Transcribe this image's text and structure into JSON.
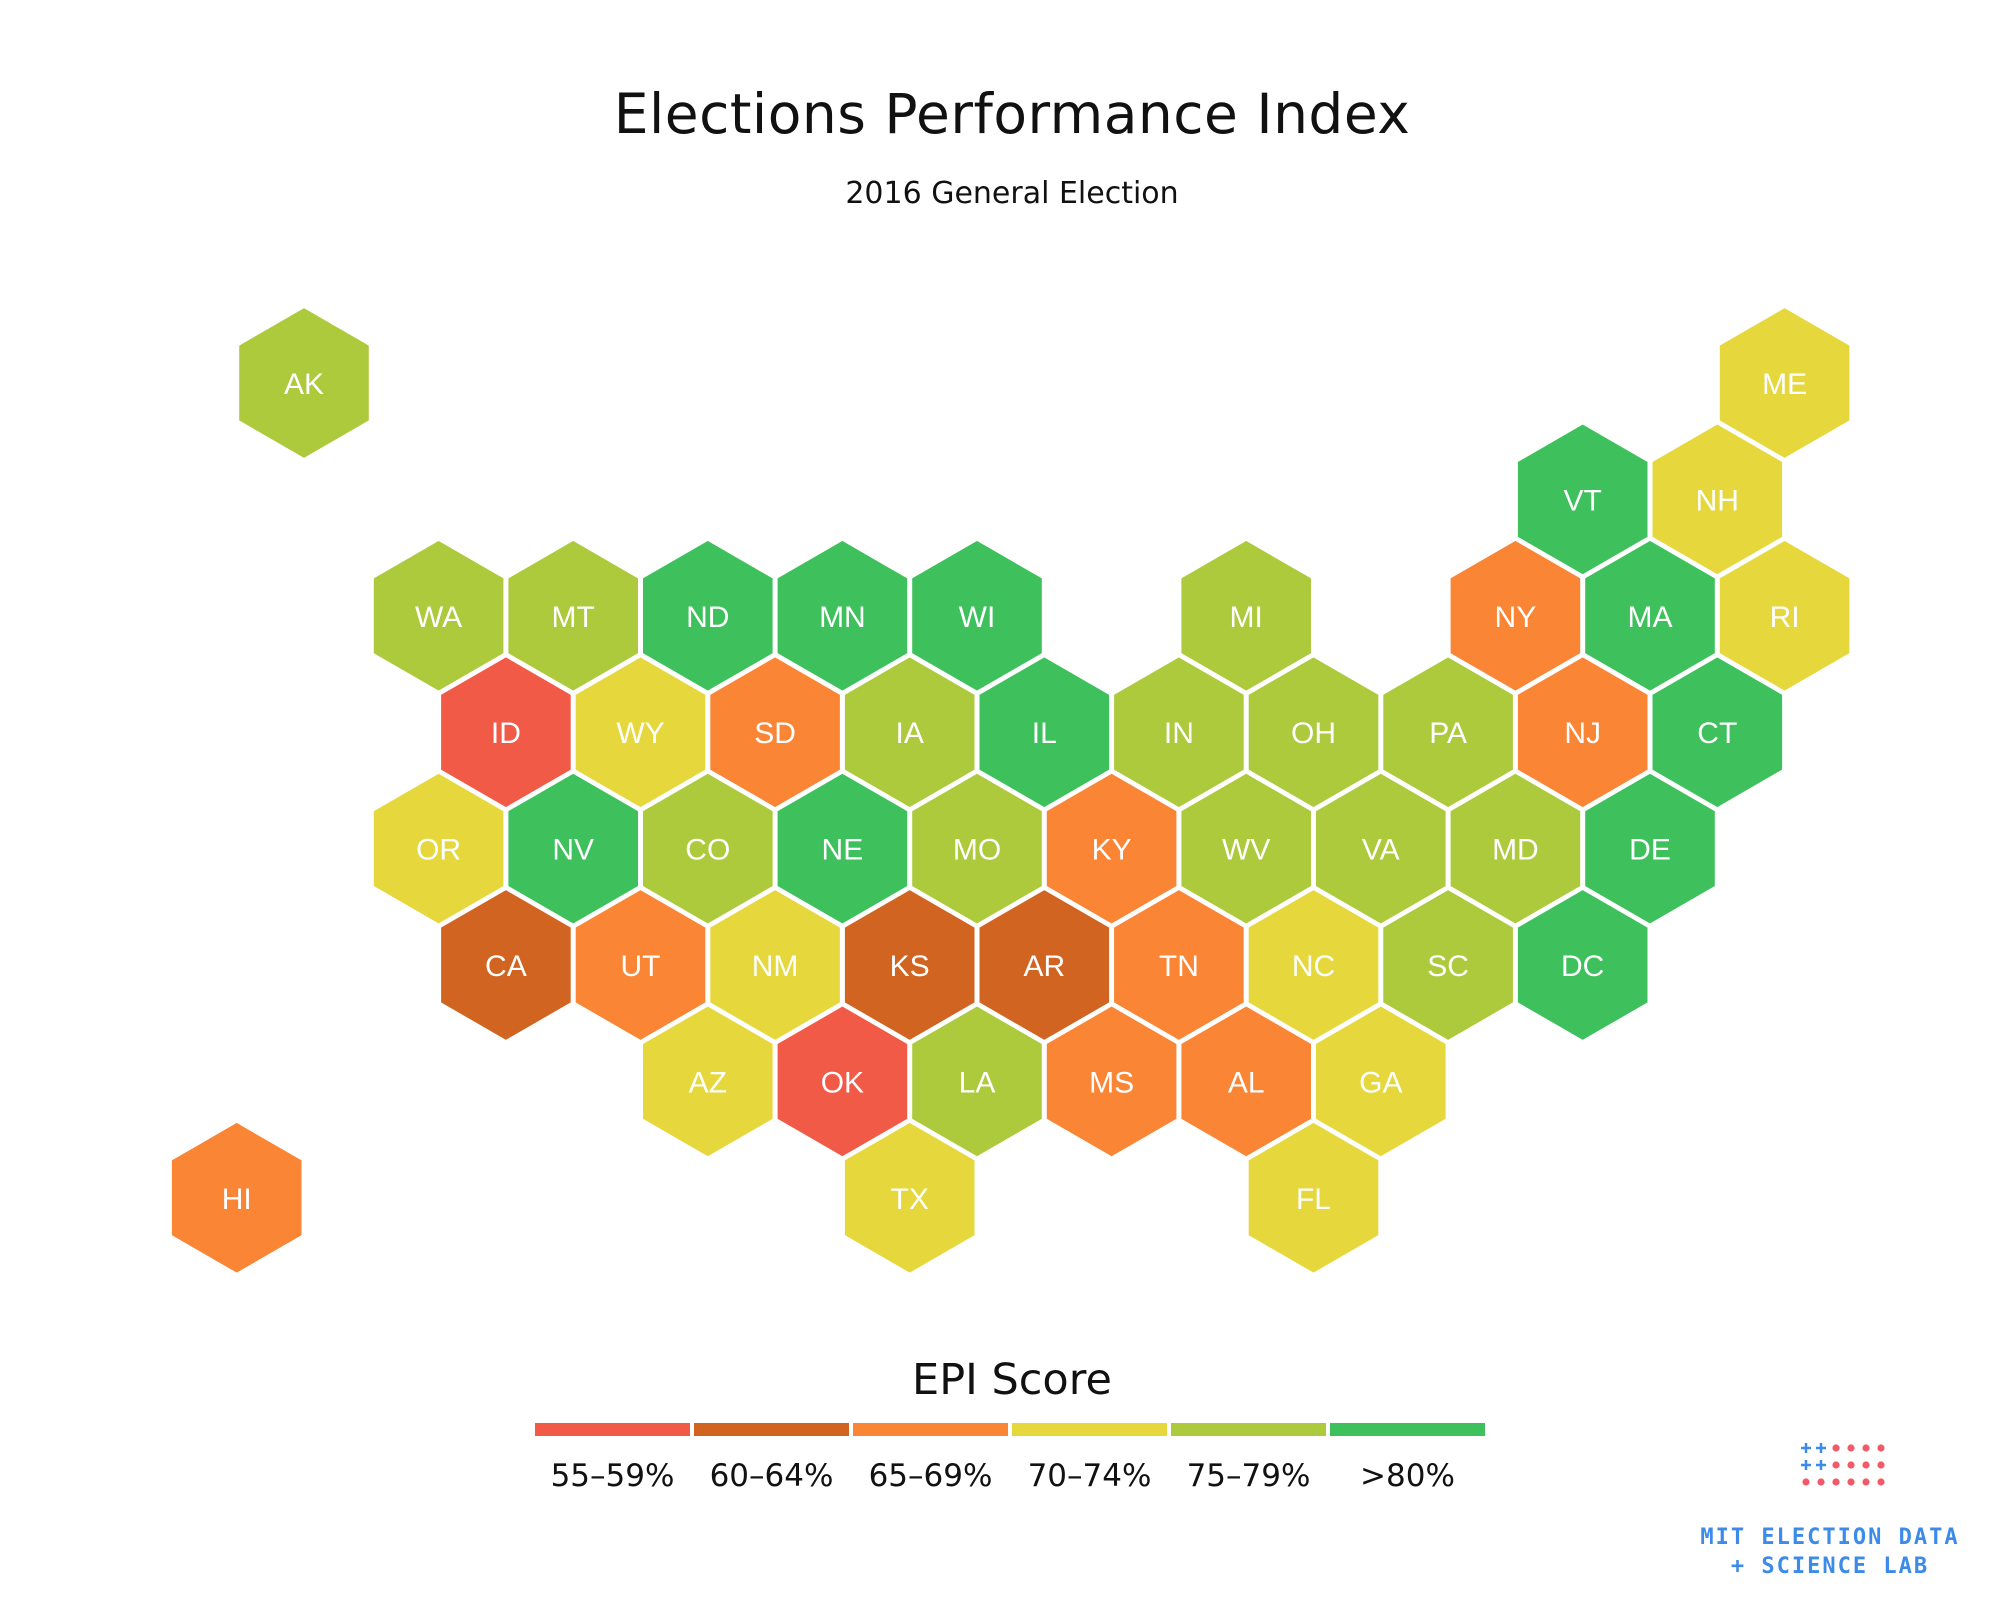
{
  "title": "Elections Performance Index",
  "subtitle": "2016 General Election",
  "colors": {
    "55-59": "#f25a48",
    "60-64": "#d16420",
    "65-69": "#f98535",
    "70-74": "#e6d83c",
    "75-79": "#adc93c",
    "80+": "#3ec15c",
    "label": "#ffffff",
    "logo_blue": "#3d8be8",
    "logo_red": "#f25a6a"
  },
  "states": [
    {
      "abbr": "AK",
      "col": 0,
      "row": 0,
      "bin": "75-79"
    },
    {
      "abbr": "ME",
      "col": 22,
      "row": 0,
      "bin": "70-74"
    },
    {
      "abbr": "VT",
      "col": 19,
      "row": 1,
      "bin": "80+"
    },
    {
      "abbr": "NH",
      "col": 21,
      "row": 1,
      "bin": "70-74"
    },
    {
      "abbr": "WA",
      "col": 2,
      "row": 2,
      "bin": "75-79"
    },
    {
      "abbr": "MT",
      "col": 4,
      "row": 2,
      "bin": "75-79"
    },
    {
      "abbr": "ND",
      "col": 6,
      "row": 2,
      "bin": "80+"
    },
    {
      "abbr": "MN",
      "col": 8,
      "row": 2,
      "bin": "80+"
    },
    {
      "abbr": "WI",
      "col": 10,
      "row": 2,
      "bin": "80+"
    },
    {
      "abbr": "MI",
      "col": 14,
      "row": 2,
      "bin": "75-79"
    },
    {
      "abbr": "NY",
      "col": 18,
      "row": 2,
      "bin": "65-69"
    },
    {
      "abbr": "MA",
      "col": 20,
      "row": 2,
      "bin": "80+"
    },
    {
      "abbr": "RI",
      "col": 22,
      "row": 2,
      "bin": "70-74"
    },
    {
      "abbr": "ID",
      "col": 3,
      "row": 3,
      "bin": "55-59"
    },
    {
      "abbr": "WY",
      "col": 5,
      "row": 3,
      "bin": "70-74"
    },
    {
      "abbr": "SD",
      "col": 7,
      "row": 3,
      "bin": "65-69"
    },
    {
      "abbr": "IA",
      "col": 9,
      "row": 3,
      "bin": "75-79"
    },
    {
      "abbr": "IL",
      "col": 11,
      "row": 3,
      "bin": "80+"
    },
    {
      "abbr": "IN",
      "col": 13,
      "row": 3,
      "bin": "75-79"
    },
    {
      "abbr": "OH",
      "col": 15,
      "row": 3,
      "bin": "75-79"
    },
    {
      "abbr": "PA",
      "col": 17,
      "row": 3,
      "bin": "75-79"
    },
    {
      "abbr": "NJ",
      "col": 19,
      "row": 3,
      "bin": "65-69"
    },
    {
      "abbr": "CT",
      "col": 21,
      "row": 3,
      "bin": "80+"
    },
    {
      "abbr": "OR",
      "col": 2,
      "row": 4,
      "bin": "70-74"
    },
    {
      "abbr": "NV",
      "col": 4,
      "row": 4,
      "bin": "80+"
    },
    {
      "abbr": "CO",
      "col": 6,
      "row": 4,
      "bin": "75-79"
    },
    {
      "abbr": "NE",
      "col": 8,
      "row": 4,
      "bin": "80+"
    },
    {
      "abbr": "MO",
      "col": 10,
      "row": 4,
      "bin": "75-79"
    },
    {
      "abbr": "KY",
      "col": 12,
      "row": 4,
      "bin": "65-69"
    },
    {
      "abbr": "WV",
      "col": 14,
      "row": 4,
      "bin": "75-79"
    },
    {
      "abbr": "VA",
      "col": 16,
      "row": 4,
      "bin": "75-79"
    },
    {
      "abbr": "MD",
      "col": 18,
      "row": 4,
      "bin": "75-79"
    },
    {
      "abbr": "DE",
      "col": 20,
      "row": 4,
      "bin": "80+"
    },
    {
      "abbr": "CA",
      "col": 3,
      "row": 5,
      "bin": "60-64"
    },
    {
      "abbr": "UT",
      "col": 5,
      "row": 5,
      "bin": "65-69"
    },
    {
      "abbr": "NM",
      "col": 7,
      "row": 5,
      "bin": "70-74"
    },
    {
      "abbr": "KS",
      "col": 9,
      "row": 5,
      "bin": "60-64"
    },
    {
      "abbr": "AR",
      "col": 11,
      "row": 5,
      "bin": "60-64"
    },
    {
      "abbr": "TN",
      "col": 13,
      "row": 5,
      "bin": "65-69"
    },
    {
      "abbr": "NC",
      "col": 15,
      "row": 5,
      "bin": "70-74"
    },
    {
      "abbr": "SC",
      "col": 17,
      "row": 5,
      "bin": "75-79"
    },
    {
      "abbr": "DC",
      "col": 19,
      "row": 5,
      "bin": "80+"
    },
    {
      "abbr": "AZ",
      "col": 6,
      "row": 6,
      "bin": "70-74"
    },
    {
      "abbr": "OK",
      "col": 8,
      "row": 6,
      "bin": "55-59"
    },
    {
      "abbr": "LA",
      "col": 10,
      "row": 6,
      "bin": "75-79"
    },
    {
      "abbr": "MS",
      "col": 12,
      "row": 6,
      "bin": "65-69"
    },
    {
      "abbr": "AL",
      "col": 14,
      "row": 6,
      "bin": "65-69"
    },
    {
      "abbr": "GA",
      "col": 16,
      "row": 6,
      "bin": "70-74"
    },
    {
      "abbr": "HI",
      "col": -1,
      "row": 7,
      "bin": "65-69"
    },
    {
      "abbr": "TX",
      "col": 9,
      "row": 7,
      "bin": "70-74"
    },
    {
      "abbr": "FL",
      "col": 15,
      "row": 7,
      "bin": "70-74"
    }
  ],
  "legend": {
    "title": "EPI Score",
    "items": [
      {
        "bin": "55-59",
        "label": "55–59%"
      },
      {
        "bin": "60-64",
        "label": "60–64%"
      },
      {
        "bin": "65-69",
        "label": "65–69%"
      },
      {
        "bin": "70-74",
        "label": "70–74%"
      },
      {
        "bin": "75-79",
        "label": "75–79%"
      },
      {
        "bin": "80+",
        "label": ">80%"
      }
    ]
  },
  "logo": {
    "line1": "MIT ELECTION DATA",
    "line2": "+ SCIENCE LAB"
  }
}
